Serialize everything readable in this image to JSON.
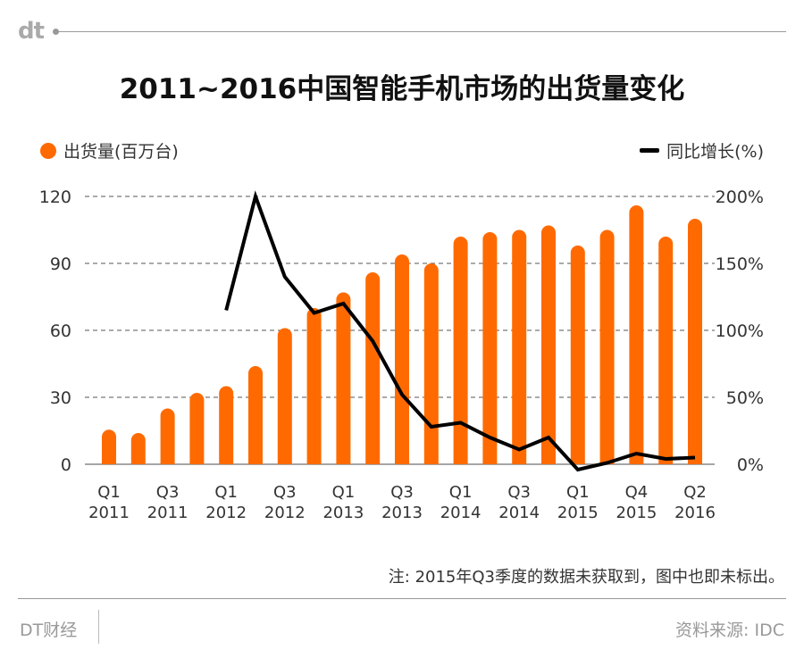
{
  "logo": "dt",
  "footer": {
    "note": "注: 2015年Q3季度的数据未获取到，图中也即未标出。",
    "brand": "DT财经",
    "source": "资料来源: IDC"
  },
  "colors": {
    "bar": "#ff6a00",
    "line": "#000000",
    "grid": "#555555"
  },
  "chart_data": {
    "type": "bar+line",
    "title": "2011~2016中国智能手机市场的出货量变化",
    "legend_placement": "top",
    "grid": true,
    "categories": [
      "Q1 2011",
      "Q2 2011",
      "Q3 2011",
      "Q4 2011",
      "Q1 2012",
      "Q2 2012",
      "Q3 2012",
      "Q4 2012",
      "Q1 2013",
      "Q2 2013",
      "Q3 2013",
      "Q4 2013",
      "Q1 2014",
      "Q2 2014",
      "Q3 2014",
      "Q4 2014",
      "Q1 2015",
      "Q2 2015",
      "Q4 2015",
      "Q1 2016",
      "Q2 2016"
    ],
    "tick_labels": [
      {
        "index": 0,
        "q": "Q1",
        "y": "2011"
      },
      {
        "index": 2,
        "q": "Q3",
        "y": "2011"
      },
      {
        "index": 4,
        "q": "Q1",
        "y": "2012"
      },
      {
        "index": 6,
        "q": "Q3",
        "y": "2012"
      },
      {
        "index": 8,
        "q": "Q1",
        "y": "2013"
      },
      {
        "index": 10,
        "q": "Q3",
        "y": "2013"
      },
      {
        "index": 12,
        "q": "Q1",
        "y": "2014"
      },
      {
        "index": 14,
        "q": "Q3",
        "y": "2014"
      },
      {
        "index": 16,
        "q": "Q1",
        "y": "2015"
      },
      {
        "index": 18,
        "q": "Q4",
        "y": "2015"
      },
      {
        "index": 20,
        "q": "Q2",
        "y": "2016"
      }
    ],
    "series": [
      {
        "name": "出货量(百万台)",
        "type": "bar",
        "axis": "left",
        "values": [
          15.5,
          14,
          25,
          32,
          35,
          44,
          61,
          70,
          77,
          86,
          94,
          90,
          102,
          104,
          105,
          107,
          98,
          105,
          116,
          102,
          110
        ]
      },
      {
        "name": "同比增长(%)",
        "type": "line",
        "axis": "right",
        "values": [
          null,
          null,
          null,
          null,
          115,
          200,
          140,
          113,
          120,
          92,
          52,
          28,
          31,
          20,
          11,
          20,
          -4,
          1,
          8,
          4,
          5
        ]
      }
    ],
    "left_axis": {
      "ylim": [
        0,
        120
      ],
      "ticks": [
        "0",
        "30",
        "60",
        "90",
        "120"
      ]
    },
    "right_axis": {
      "ylim": [
        0,
        200
      ],
      "ticks": [
        "0%",
        "50%",
        "100%",
        "150%",
        "200%"
      ]
    }
  }
}
